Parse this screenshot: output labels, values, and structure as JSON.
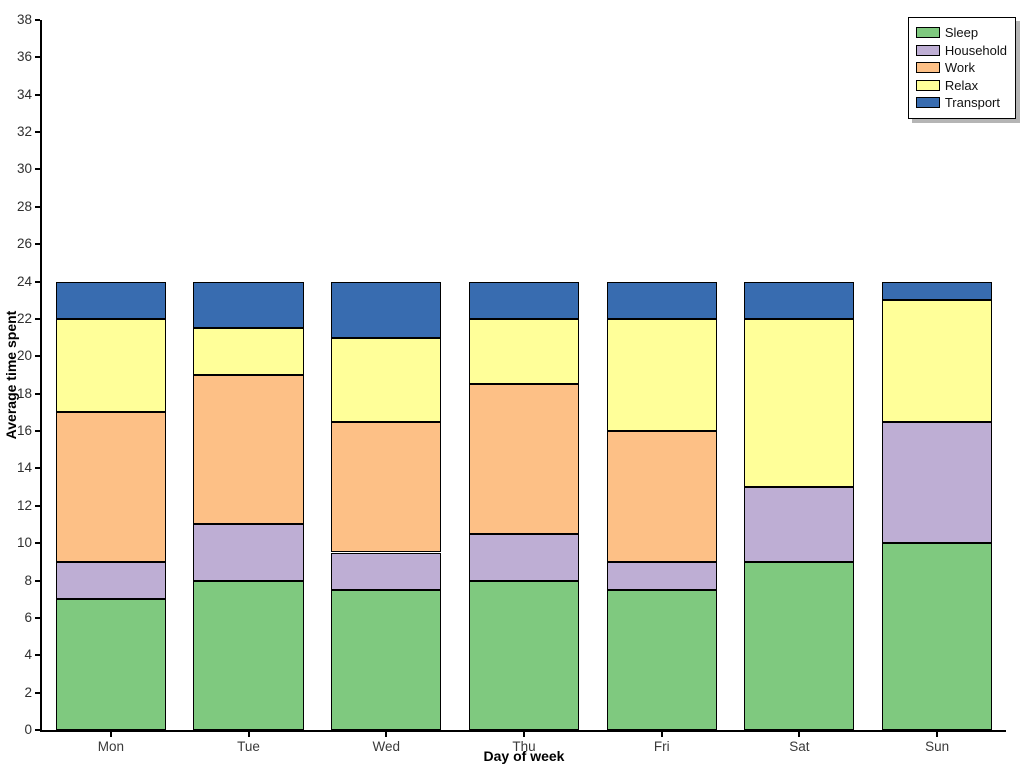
{
  "chart_data": {
    "type": "bar",
    "stacked": true,
    "title": "",
    "xlabel": "Day of week",
    "ylabel": "Average time spent",
    "categories": [
      "Mon",
      "Tue",
      "Wed",
      "Thu",
      "Fri",
      "Sat",
      "Sun"
    ],
    "series": [
      {
        "name": "Sleep",
        "color": "#7fc97f",
        "values": [
          7,
          8,
          7.5,
          8,
          7.5,
          9,
          10
        ]
      },
      {
        "name": "Household",
        "color": "#beaed4",
        "values": [
          2,
          3,
          2,
          2.5,
          1.5,
          4,
          6.5
        ]
      },
      {
        "name": "Work",
        "color": "#fdc086",
        "values": [
          8,
          8,
          7,
          8,
          7,
          0,
          0
        ]
      },
      {
        "name": "Relax",
        "color": "#ffff99",
        "values": [
          5,
          2.5,
          4.5,
          3.5,
          6,
          9,
          6.5
        ]
      },
      {
        "name": "Transport",
        "color": "#386cb0",
        "values": [
          2,
          2.5,
          3,
          2,
          2,
          2,
          1
        ]
      }
    ],
    "ylim": [
      0,
      38
    ],
    "ytick_step": 2,
    "xlim_bars_total": 24,
    "legend_position": "upper right",
    "grid": false,
    "bar_edge_color": "#000000",
    "axis_color": "#000000"
  }
}
